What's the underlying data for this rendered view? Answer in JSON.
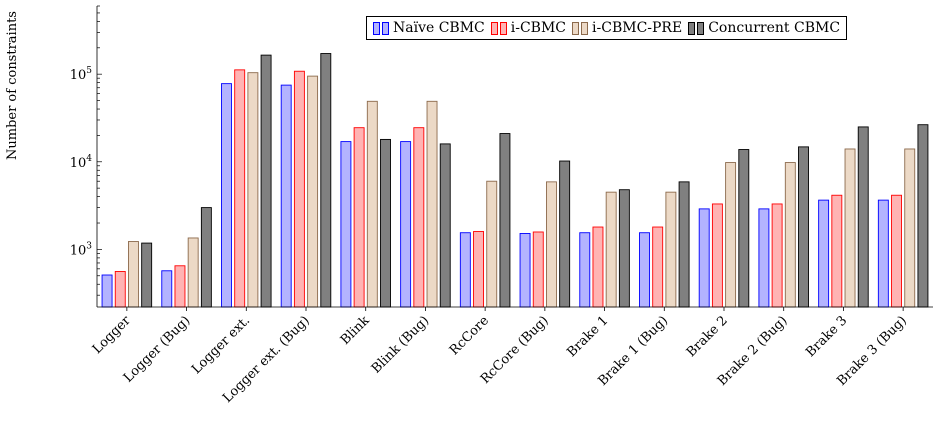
{
  "chart_data": {
    "type": "bar",
    "ylabel": "Number of constraints",
    "xlabel": "",
    "yscale": "log",
    "ylim": [
      220,
      600000
    ],
    "yticks": [
      {
        "value": 1000,
        "base": "10",
        "exp": "3"
      },
      {
        "value": 10000,
        "base": "10",
        "exp": "4"
      },
      {
        "value": 100000,
        "base": "10",
        "exp": "5"
      }
    ],
    "legend_position": "top-right",
    "grid": false,
    "categories": [
      "Logger",
      "Logger (Bug)",
      "Logger ext.",
      "Logger ext. (Bug)",
      "Blink",
      "Blink (Bug)",
      "RcCore",
      "RcCore (Bug)",
      "Brake 1",
      "Brake 1 (Bug)",
      "Brake 2",
      "Brake 2 (Bug)",
      "Brake 3",
      "Brake 3 (Bug)"
    ],
    "series": [
      {
        "name": "Naïve CBMC",
        "fill": "#b3b3ff",
        "stroke": "#0000ff",
        "values": [
          510,
          570,
          78000,
          75000,
          17000,
          17000,
          1550,
          1520,
          1550,
          1550,
          2900,
          2900,
          3650,
          3650
        ]
      },
      {
        "name": "i-CBMC",
        "fill": "#ffb3b3",
        "stroke": "#ff0000",
        "values": [
          560,
          650,
          112000,
          108000,
          24500,
          24500,
          1600,
          1580,
          1800,
          1800,
          3300,
          3300,
          4150,
          4150
        ]
      },
      {
        "name": "i-CBMC-PRE",
        "fill": "#ecd9c6",
        "stroke": "#8c6a4c",
        "values": [
          1230,
          1350,
          104000,
          95000,
          49000,
          49000,
          6000,
          5900,
          4500,
          4500,
          9800,
          9800,
          14000,
          14000
        ]
      },
      {
        "name": "Concurrent CBMC",
        "fill": "#808080",
        "stroke": "#000000",
        "values": [
          1180,
          3000,
          165000,
          172000,
          18000,
          16000,
          21000,
          10200,
          4800,
          5900,
          13800,
          14800,
          25000,
          26500
        ]
      }
    ]
  }
}
